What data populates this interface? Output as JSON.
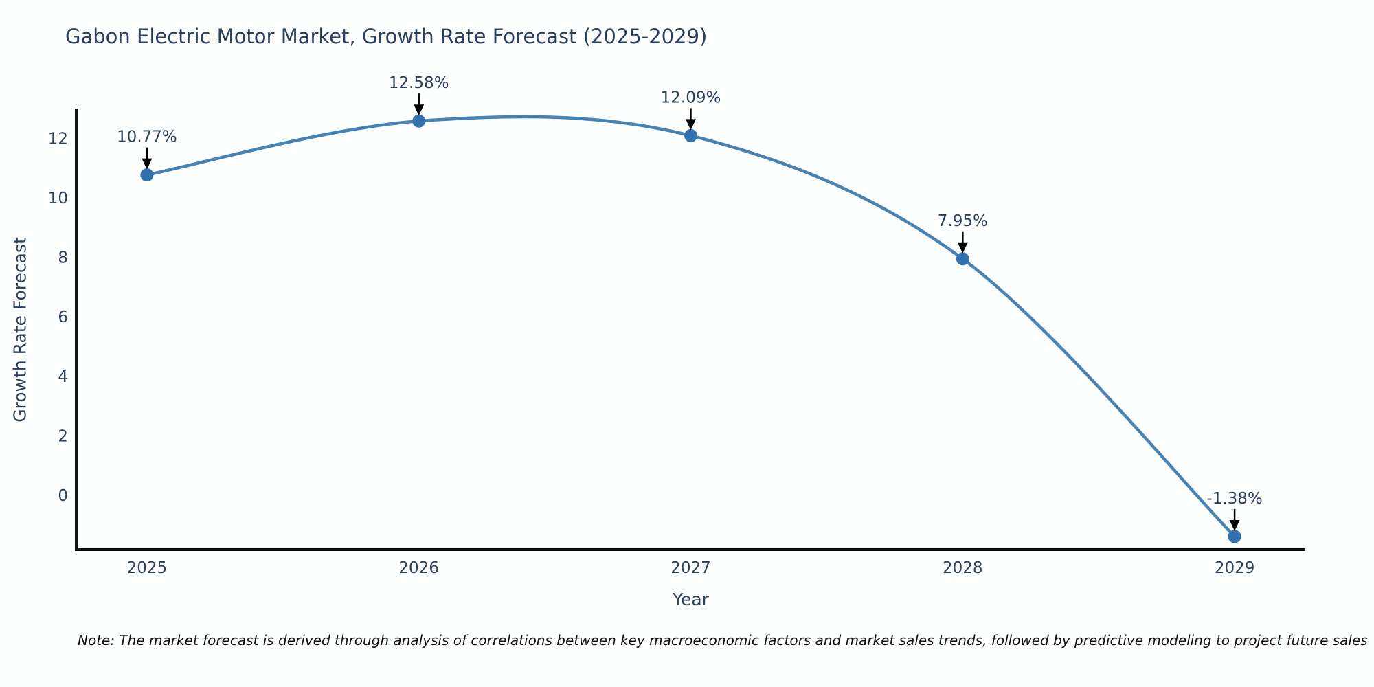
{
  "title": "Gabon Electric Motor Market, Growth Rate Forecast (2025-2029)",
  "note": "Note: The market forecast is derived through analysis of correlations between key macroeconomic factors and market sales trends, followed by predictive modeling to project future sales",
  "chart_data": {
    "type": "line",
    "line_shape": "spline",
    "x": [
      2025,
      2026,
      2027,
      2028,
      2029
    ],
    "values": [
      10.77,
      12.58,
      12.09,
      7.95,
      -1.38
    ],
    "point_labels": [
      "10.77%",
      "12.58%",
      "12.09%",
      "7.95%",
      "-1.38%"
    ],
    "title": "Gabon Electric Motor Market, Growth Rate Forecast (2025-2029)",
    "xlabel": "Year",
    "ylabel": "Growth Rate Forecast",
    "xticks": [
      2025,
      2026,
      2027,
      2028,
      2029
    ],
    "yticks": [
      0,
      2,
      4,
      6,
      8,
      10,
      12
    ],
    "xlim": [
      2024.74,
      2029.26
    ],
    "ylim": [
      -1.82,
      13.0
    ],
    "grid": false,
    "legend": "none",
    "colors": {
      "line": "#4682b4",
      "marker": "#3171ad",
      "axis": "#111111",
      "text": "#2a3f5f",
      "annotation_arrow": "#000000"
    }
  }
}
